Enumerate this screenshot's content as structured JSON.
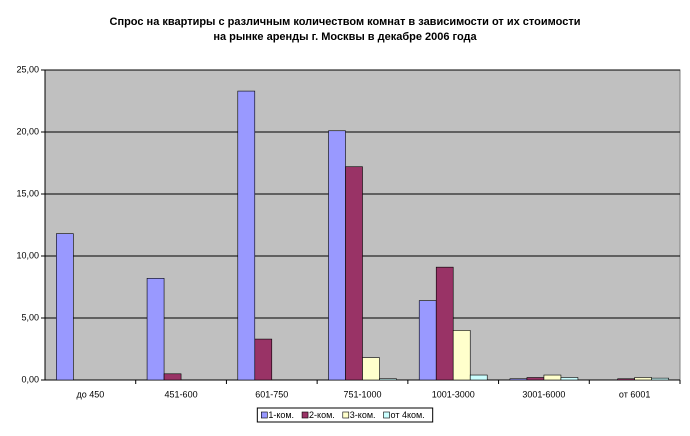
{
  "chart_data": {
    "type": "bar",
    "title": [
      "Спрос на квартиры с различным количеством комнат в зависимости от их стоимости",
      "на рынке аренды г. Москвы в декабре 2006 года"
    ],
    "categories": [
      "до 450",
      "451-600",
      "601-750",
      "751-1000",
      "1001-3000",
      "3001-6000",
      "от 6001"
    ],
    "series": [
      {
        "name": "1-ком.",
        "color": "#9999ff",
        "values": [
          11.8,
          8.2,
          23.3,
          20.1,
          6.4,
          0.1,
          0
        ]
      },
      {
        "name": "2-ком.",
        "color": "#993366",
        "values": [
          0,
          0.5,
          3.3,
          17.2,
          9.1,
          0.2,
          0.1
        ]
      },
      {
        "name": "3-ком.",
        "color": "#ffffcc",
        "values": [
          0,
          0,
          0,
          1.8,
          4.0,
          0.4,
          0.2
        ]
      },
      {
        "name": "от 4ком.",
        "color": "#ccffff",
        "values": [
          0,
          0,
          0,
          0.1,
          0.4,
          0.2,
          0.15
        ]
      }
    ],
    "ylim": [
      0,
      25
    ],
    "yticks": [
      {
        "value": 0,
        "label": "0,00"
      },
      {
        "value": 5,
        "label": "5,00"
      },
      {
        "value": 10,
        "label": "10,00"
      },
      {
        "value": 15,
        "label": "15,00"
      },
      {
        "value": 20,
        "label": "20,00"
      },
      {
        "value": 25,
        "label": "25,00"
      }
    ],
    "grid": true,
    "legend": "bottom"
  }
}
